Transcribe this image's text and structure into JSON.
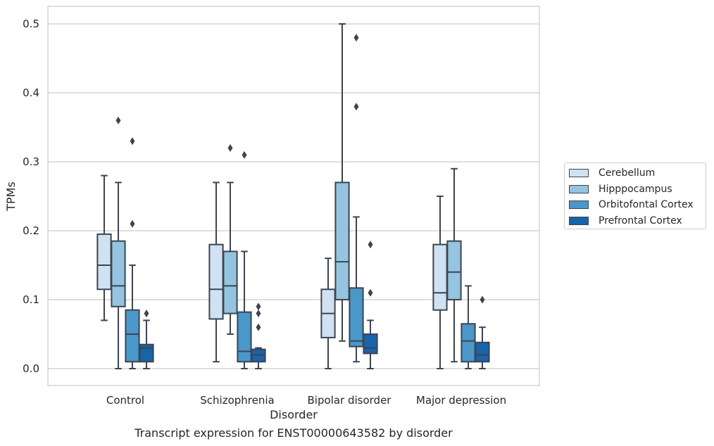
{
  "chart_data": {
    "type": "box",
    "title": "",
    "caption": "Transcript expression for ENST00000643582 by disorder",
    "xlabel": "Disorder",
    "ylabel": "TPMs",
    "ylim": [
      -0.025,
      0.525
    ],
    "yticks": [
      "0.0",
      "0.1",
      "0.2",
      "0.3",
      "0.4",
      "0.5"
    ],
    "grid": "horizontal",
    "legend_position": "right",
    "categories": [
      "Control",
      "Schizophrenia",
      "Bipolar disorder",
      "Major depression"
    ],
    "series": [
      {
        "name": "Cerebellum",
        "color": "#d0e1f2",
        "boxes": [
          {
            "whisker_low": 0.07,
            "q1": 0.115,
            "median": 0.15,
            "q3": 0.195,
            "whisker_high": 0.28,
            "outliers": []
          },
          {
            "whisker_low": 0.01,
            "q1": 0.072,
            "median": 0.115,
            "q3": 0.18,
            "whisker_high": 0.27,
            "outliers": []
          },
          {
            "whisker_low": 0.0,
            "q1": 0.045,
            "median": 0.08,
            "q3": 0.115,
            "whisker_high": 0.16,
            "outliers": []
          },
          {
            "whisker_low": 0.0,
            "q1": 0.085,
            "median": 0.11,
            "q3": 0.18,
            "whisker_high": 0.25,
            "outliers": []
          }
        ]
      },
      {
        "name": "Hipppocampus",
        "color": "#94c4df",
        "boxes": [
          {
            "whisker_low": 0.0,
            "q1": 0.09,
            "median": 0.12,
            "q3": 0.185,
            "whisker_high": 0.27,
            "outliers": [
              0.36
            ]
          },
          {
            "whisker_low": 0.05,
            "q1": 0.08,
            "median": 0.12,
            "q3": 0.17,
            "whisker_high": 0.27,
            "outliers": [
              0.32
            ]
          },
          {
            "whisker_low": 0.04,
            "q1": 0.1,
            "median": 0.155,
            "q3": 0.27,
            "whisker_high": 0.5,
            "outliers": []
          },
          {
            "whisker_low": 0.01,
            "q1": 0.1,
            "median": 0.14,
            "q3": 0.185,
            "whisker_high": 0.29,
            "outliers": []
          }
        ]
      },
      {
        "name": "Orbitofontal Cortex",
        "color": "#4a98c9",
        "boxes": [
          {
            "whisker_low": 0.0,
            "q1": 0.01,
            "median": 0.05,
            "q3": 0.085,
            "whisker_high": 0.15,
            "outliers": [
              0.21,
              0.33
            ]
          },
          {
            "whisker_low": 0.0,
            "q1": 0.01,
            "median": 0.025,
            "q3": 0.082,
            "whisker_high": 0.17,
            "outliers": [
              0.31
            ]
          },
          {
            "whisker_low": 0.01,
            "q1": 0.032,
            "median": 0.04,
            "q3": 0.117,
            "whisker_high": 0.22,
            "outliers": [
              0.38,
              0.48
            ]
          },
          {
            "whisker_low": 0.0,
            "q1": 0.01,
            "median": 0.04,
            "q3": 0.065,
            "whisker_high": 0.12,
            "outliers": []
          }
        ]
      },
      {
        "name": "Prefrontal Cortex",
        "color": "#1764ab",
        "boxes": [
          {
            "whisker_low": 0.0,
            "q1": 0.01,
            "median": 0.03,
            "q3": 0.035,
            "whisker_high": 0.07,
            "outliers": [
              0.08
            ]
          },
          {
            "whisker_low": 0.0,
            "q1": 0.01,
            "median": 0.02,
            "q3": 0.028,
            "whisker_high": 0.03,
            "outliers": [
              0.06,
              0.08,
              0.09
            ]
          },
          {
            "whisker_low": 0.0,
            "q1": 0.022,
            "median": 0.03,
            "q3": 0.05,
            "whisker_high": 0.07,
            "outliers": [
              0.11,
              0.18
            ]
          },
          {
            "whisker_low": 0.0,
            "q1": 0.01,
            "median": 0.02,
            "q3": 0.038,
            "whisker_high": 0.06,
            "outliers": [
              0.1
            ]
          }
        ]
      }
    ]
  }
}
